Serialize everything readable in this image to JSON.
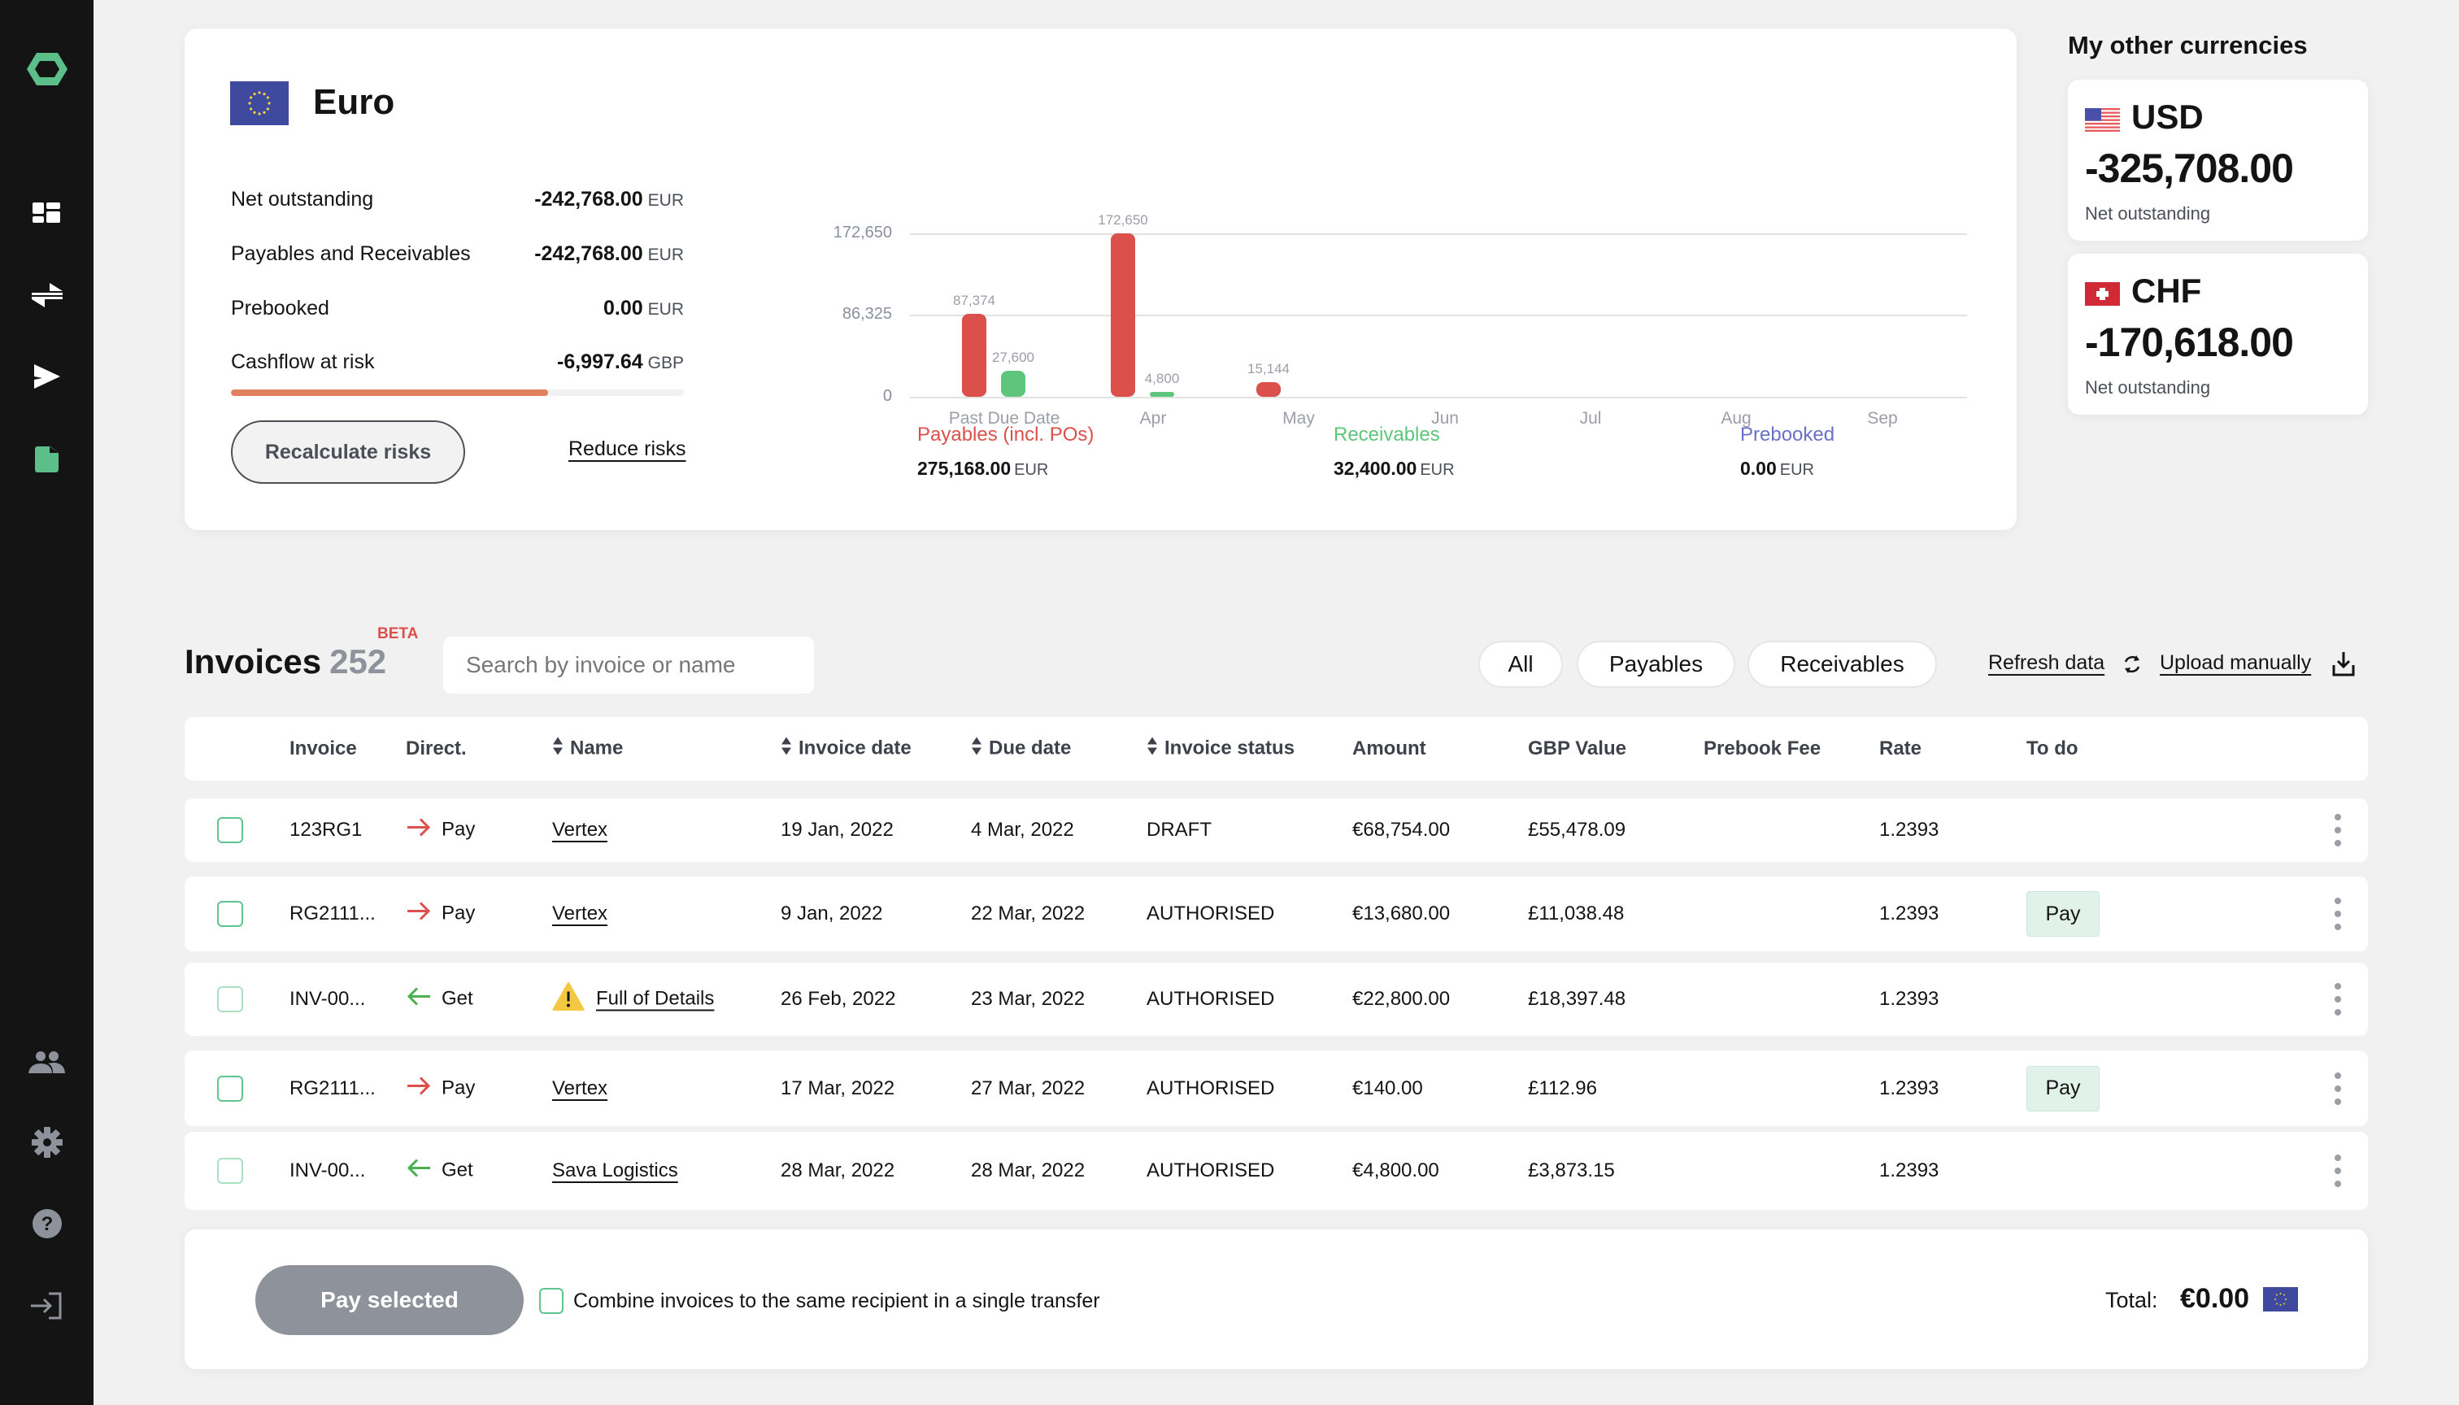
{
  "sidebar": {
    "logo": "logo-hexagon",
    "nav_top": [
      "dashboard-icon",
      "exchange-icon",
      "send-icon",
      "invoices-icon"
    ],
    "nav_bottom": [
      "users-icon",
      "settings-icon",
      "help-icon",
      "logout-icon"
    ],
    "active_color": "#5cbf8a"
  },
  "euro_card": {
    "title": "Euro",
    "stats": [
      {
        "label": "Net outstanding",
        "value": "-242,768.00",
        "currency": "EUR"
      },
      {
        "label": "Payables and Receivables",
        "value": "-242,768.00",
        "currency": "EUR"
      },
      {
        "label": "Prebooked",
        "value": "0.00",
        "currency": "EUR"
      },
      {
        "label": "Cashflow at risk",
        "value": "-6,997.64",
        "currency": "GBP"
      }
    ],
    "risk_fill_percent": 70,
    "recalculate_label": "Recalculate risks",
    "reduce_label": "Reduce risks",
    "legend": [
      {
        "name": "Payables (incl. POs)",
        "amount": "275,168.00",
        "currency": "EUR",
        "color": "#dc504c"
      },
      {
        "name": "Receivables",
        "amount": "32,400.00",
        "currency": "EUR",
        "color": "#5ec57c"
      },
      {
        "name": "Prebooked",
        "amount": "0.00",
        "currency": "EUR",
        "color": "#6a70c8"
      }
    ]
  },
  "chart_data": {
    "type": "bar",
    "title": "",
    "xlabel": "",
    "ylabel": "",
    "categories": [
      "Past Due Date",
      "Apr",
      "May",
      "Jun",
      "Jul",
      "Aug",
      "Sep"
    ],
    "series": [
      {
        "name": "Payables (incl. POs)",
        "color": "#dc504c",
        "values": [
          87374,
          172650,
          15144,
          0,
          0,
          0,
          0
        ]
      },
      {
        "name": "Receivables",
        "color": "#5ec57c",
        "values": [
          27600,
          4800,
          0,
          0,
          0,
          0,
          0
        ]
      },
      {
        "name": "Prebooked",
        "color": "#6a70c8",
        "values": [
          0,
          0,
          0,
          0,
          0,
          0,
          0
        ]
      }
    ],
    "bar_labels": {
      "payables": [
        "87,374",
        "172,650",
        "15,144"
      ],
      "receivables": [
        "27,600",
        "4,800"
      ]
    },
    "y_ticks": [
      "0",
      "86,325",
      "172,650"
    ],
    "ylim": [
      0,
      172650
    ],
    "grid": true,
    "legend_position": "bottom"
  },
  "other_currencies": {
    "title": "My other currencies",
    "items": [
      {
        "code": "USD",
        "amount": "-325,708.00",
        "label": "Net outstanding",
        "flag": "us-flag"
      },
      {
        "code": "CHF",
        "amount": "-170,618.00",
        "label": "Net outstanding",
        "flag": "ch-flag"
      }
    ]
  },
  "invoices": {
    "title": "Invoices",
    "count": "252",
    "beta": "BETA",
    "search_placeholder": "Search by invoice or name",
    "filters": [
      "All",
      "Payables",
      "Receivables"
    ],
    "refresh_label": "Refresh data",
    "upload_label": "Upload manually",
    "columns": [
      "Invoice",
      "Direct.",
      "Name",
      "Invoice date",
      "Due date",
      "Invoice status",
      "Amount",
      "GBP Value",
      "Prebook Fee",
      "Rate",
      "To do"
    ],
    "rows": [
      {
        "invoice": "123RG1",
        "direction": "Pay",
        "name": "Vertex",
        "warning": false,
        "invoice_date": "19 Jan, 2022",
        "due_date": "4 Mar, 2022",
        "status": "DRAFT",
        "amount": "€68,754.00",
        "gbp": "£55,478.09",
        "fee": "",
        "rate": "1.2393",
        "todo": ""
      },
      {
        "invoice": "RG2111...",
        "direction": "Pay",
        "name": "Vertex",
        "warning": false,
        "invoice_date": "9 Jan, 2022",
        "due_date": "22 Mar, 2022",
        "status": "AUTHORISED",
        "amount": "€13,680.00",
        "gbp": "£11,038.48",
        "fee": "",
        "rate": "1.2393",
        "todo": "Pay"
      },
      {
        "invoice": "INV-00...",
        "direction": "Get",
        "name": "Full of Details",
        "warning": true,
        "invoice_date": "26 Feb, 2022",
        "due_date": "23 Mar, 2022",
        "status": "AUTHORISED",
        "amount": "€22,800.00",
        "gbp": "£18,397.48",
        "fee": "",
        "rate": "1.2393",
        "todo": ""
      },
      {
        "invoice": "RG2111...",
        "direction": "Pay",
        "name": "Vertex",
        "warning": false,
        "invoice_date": "17 Mar, 2022",
        "due_date": "27 Mar, 2022",
        "status": "AUTHORISED",
        "amount": "€140.00",
        "gbp": "£112.96",
        "fee": "",
        "rate": "1.2393",
        "todo": "Pay"
      },
      {
        "invoice": "INV-00...",
        "direction": "Get",
        "name": "Sava Logistics",
        "warning": false,
        "invoice_date": "28 Mar, 2022",
        "due_date": "28 Mar, 2022",
        "status": "AUTHORISED",
        "amount": "€4,800.00",
        "gbp": "£3,873.15",
        "fee": "",
        "rate": "1.2393",
        "todo": ""
      }
    ]
  },
  "footer": {
    "pay_selected_label": "Pay selected",
    "combine_label": "Combine invoices to the same recipient in a single transfer",
    "total_label": "Total:",
    "total_value": "€0.00"
  }
}
